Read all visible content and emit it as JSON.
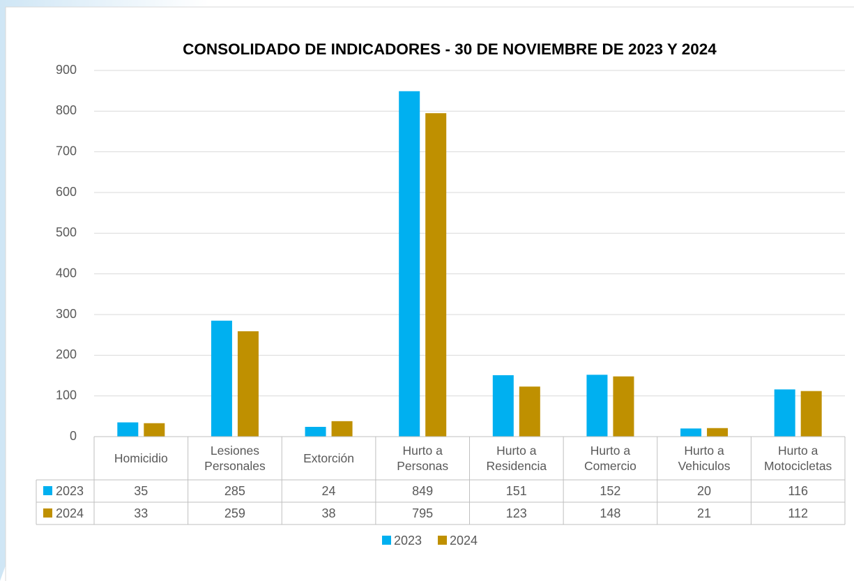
{
  "chart_data": {
    "type": "bar",
    "title": "CONSOLIDADO DE INDICADORES - 30 DE NOVIEMBRE DE 2023 Y 2024",
    "categories": [
      "Homicidio",
      "Lesiones Personales",
      "Extorción",
      "Hurto a Personas",
      "Hurto a Residencia",
      "Hurto a Comercio",
      "Hurto a Vehiculos",
      "Hurto a Motocicletas"
    ],
    "series": [
      {
        "name": "2023",
        "color": "#00b0f0",
        "values": [
          35,
          285,
          24,
          849,
          151,
          152,
          20,
          116
        ]
      },
      {
        "name": "2024",
        "color": "#bf9000",
        "values": [
          33,
          259,
          38,
          795,
          123,
          148,
          21,
          112
        ]
      }
    ],
    "ylim": [
      0,
      900
    ],
    "yticks": [
      0,
      100,
      200,
      300,
      400,
      500,
      600,
      700,
      800,
      900
    ],
    "grid": true,
    "legend": "bottom",
    "data_table": true
  }
}
